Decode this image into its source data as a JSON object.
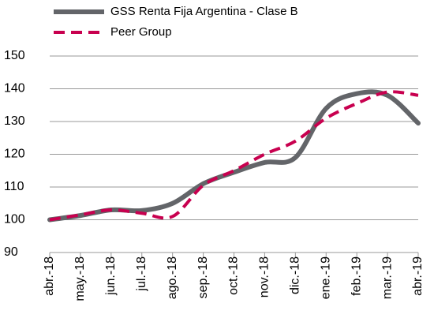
{
  "chart_data": {
    "type": "line",
    "categories": [
      "abr.-18",
      "may.-18",
      "jun.-18",
      "jul.-18",
      "ago.-18",
      "sep.-18",
      "oct.-18",
      "nov.-18",
      "dic.-18",
      "ene.-19",
      "feb.-19",
      "mar.-19",
      "abr.-19"
    ],
    "series": [
      {
        "name": "GSS Renta Fija Argentina - Clase B",
        "color": "#636569",
        "dash": false,
        "values": [
          100,
          101.3,
          103,
          102.8,
          105,
          111,
          114.5,
          117.5,
          119,
          134,
          138.5,
          138,
          129.5
        ]
      },
      {
        "name": "Peer Group",
        "color": "#c8004f",
        "dash": true,
        "values": [
          100,
          101.5,
          103,
          102,
          101,
          110.5,
          115,
          120,
          124,
          131,
          135.5,
          139,
          138
        ]
      }
    ],
    "ylim": [
      90,
      150
    ],
    "yticks": [
      90,
      100,
      110,
      120,
      130,
      140,
      150
    ],
    "grid": true
  }
}
